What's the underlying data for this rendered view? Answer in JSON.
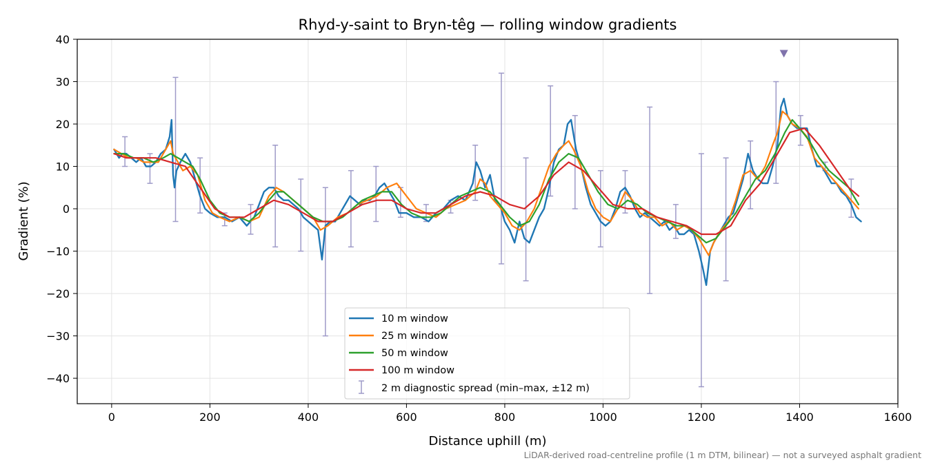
{
  "chart_data": {
    "type": "line",
    "title": "Rhyd-y-saint to Bryn-têg — rolling window gradients",
    "xlabel": "Distance uphill (m)",
    "ylabel": "Gradient (%)",
    "xlim": [
      -70,
      1600
    ],
    "ylim": [
      -46,
      40
    ],
    "xticks": [
      0,
      200,
      400,
      600,
      800,
      1000,
      1200,
      1400,
      1600
    ],
    "yticks": [
      -40,
      -30,
      -20,
      -10,
      0,
      10,
      20,
      30,
      40
    ],
    "xtick_labels": [
      "0",
      "200",
      "400",
      "600",
      "800",
      "1000",
      "1200",
      "1400",
      "1600"
    ],
    "ytick_labels": [
      "−40",
      "−30",
      "−20",
      "−10",
      "0",
      "10",
      "20",
      "30",
      "40"
    ],
    "grid": true,
    "legend_position": "lower center",
    "footnote": "LiDAR-derived road-centreline profile (1 m DTM, bilinear) — not a surveyed asphalt gradient",
    "colors": {
      "w10": "#1f77b4",
      "w25": "#ff7f0e",
      "w50": "#2ca02c",
      "w100": "#d62728",
      "diagnostic": "#9e9ac8",
      "marker": "#8073ac"
    },
    "series": [
      {
        "name": "10 m window",
        "x": [
          5,
          15,
          22,
          30,
          40,
          50,
          60,
          70,
          80,
          90,
          100,
          110,
          118,
          122,
          125,
          128,
          132,
          140,
          150,
          160,
          170,
          180,
          190,
          200,
          215,
          230,
          245,
          260,
          275,
          290,
          300,
          310,
          320,
          330,
          340,
          350,
          360,
          370,
          380,
          390,
          400,
          410,
          420,
          428,
          435,
          445,
          455,
          465,
          475,
          485,
          495,
          505,
          515,
          525,
          535,
          545,
          555,
          565,
          575,
          585,
          600,
          615,
          630,
          645,
          660,
          675,
          690,
          705,
          720,
          735,
          742,
          750,
          760,
          770,
          780,
          790,
          800,
          810,
          820,
          830,
          840,
          850,
          860,
          870,
          880,
          890,
          900,
          910,
          920,
          928,
          935,
          945,
          955,
          965,
          975,
          985,
          995,
          1005,
          1015,
          1025,
          1035,
          1045,
          1055,
          1065,
          1075,
          1085,
          1095,
          1105,
          1115,
          1125,
          1135,
          1145,
          1155,
          1165,
          1175,
          1185,
          1195,
          1203,
          1210,
          1218,
          1225,
          1235,
          1245,
          1255,
          1265,
          1275,
          1285,
          1295,
          1305,
          1315,
          1325,
          1335,
          1345,
          1355,
          1362,
          1368,
          1375,
          1385,
          1395,
          1405,
          1415,
          1425,
          1435,
          1445,
          1455,
          1465,
          1475,
          1485,
          1495,
          1505,
          1515,
          1525
        ],
        "values": [
          14,
          12,
          13,
          13,
          12,
          11,
          12,
          10,
          10,
          11,
          13,
          14,
          17,
          21,
          8,
          5,
          9,
          11,
          13,
          11,
          7,
          3,
          0,
          -1,
          -2,
          -2,
          -3,
          -2,
          -4,
          -2,
          1,
          4,
          5,
          5,
          3,
          2,
          2,
          1,
          0,
          -2,
          -3,
          -4,
          -5,
          -12,
          -4,
          -3,
          -3,
          -1,
          1,
          3,
          2,
          1,
          2,
          2,
          3,
          5,
          6,
          4,
          2,
          -1,
          -1,
          -2,
          -2,
          -3,
          -1,
          0,
          2,
          3,
          2,
          6,
          11,
          9,
          5,
          8,
          2,
          1,
          -3,
          -5,
          -8,
          -3,
          -7,
          -8,
          -5,
          -2,
          0,
          5,
          11,
          14,
          15,
          20,
          21,
          14,
          10,
          5,
          1,
          -1,
          -3,
          -4,
          -3,
          0,
          4,
          5,
          3,
          0,
          -2,
          -1,
          -2,
          -3,
          -4,
          -3,
          -5,
          -4,
          -6,
          -6,
          -5,
          -6,
          -10,
          -14,
          -18,
          -10,
          -8,
          -6,
          -4,
          -2,
          -1,
          3,
          7,
          13,
          9,
          7,
          6,
          6,
          10,
          15,
          24,
          26,
          22,
          20,
          19,
          19,
          19,
          14,
          10,
          10,
          8,
          6,
          6,
          4,
          3,
          1,
          -2,
          -3
        ]
      },
      {
        "name": "25 m window",
        "x": [
          5,
          20,
          35,
          50,
          65,
          80,
          95,
          105,
          115,
          120,
          125,
          135,
          145,
          160,
          175,
          190,
          205,
          220,
          240,
          260,
          280,
          300,
          320,
          335,
          350,
          370,
          390,
          410,
          425,
          440,
          460,
          480,
          500,
          520,
          540,
          560,
          580,
          600,
          620,
          640,
          660,
          680,
          700,
          720,
          740,
          750,
          760,
          770,
          785,
          800,
          815,
          830,
          845,
          860,
          875,
          890,
          905,
          920,
          930,
          940,
          955,
          970,
          985,
          1000,
          1015,
          1030,
          1045,
          1060,
          1075,
          1090,
          1105,
          1120,
          1135,
          1150,
          1165,
          1180,
          1195,
          1205,
          1215,
          1225,
          1240,
          1255,
          1270,
          1285,
          1300,
          1315,
          1330,
          1345,
          1355,
          1365,
          1375,
          1385,
          1400,
          1415,
          1430,
          1445,
          1460,
          1475,
          1490,
          1505,
          1520
        ],
        "values": [
          14,
          13,
          12,
          12,
          11,
          11,
          11,
          13,
          15,
          16,
          13,
          11,
          9,
          10,
          8,
          2,
          -1,
          -2,
          -3,
          -2,
          -3,
          -2,
          3,
          5,
          4,
          2,
          0,
          -2,
          -5,
          -4,
          -2,
          -1,
          1,
          2,
          3,
          5,
          6,
          3,
          0,
          -1,
          -2,
          0,
          1,
          2,
          4,
          7,
          6,
          3,
          1,
          -1,
          -4,
          -5,
          -3,
          0,
          5,
          10,
          13,
          15,
          16,
          14,
          10,
          4,
          0,
          -2,
          -3,
          0,
          4,
          2,
          -1,
          -2,
          -2,
          -4,
          -3,
          -5,
          -4,
          -5,
          -7,
          -9,
          -11,
          -8,
          -5,
          -3,
          2,
          8,
          9,
          7,
          10,
          15,
          18,
          23,
          22,
          20,
          19,
          17,
          12,
          10,
          8,
          6,
          4,
          2,
          0
        ]
      },
      {
        "name": "50 m window",
        "x": [
          5,
          25,
          45,
          65,
          85,
          105,
          120,
          135,
          150,
          165,
          180,
          200,
          220,
          240,
          260,
          280,
          300,
          320,
          335,
          350,
          370,
          390,
          410,
          430,
          450,
          470,
          490,
          510,
          530,
          550,
          570,
          590,
          610,
          630,
          650,
          670,
          690,
          710,
          730,
          750,
          770,
          790,
          810,
          830,
          850,
          870,
          890,
          910,
          930,
          950,
          970,
          990,
          1010,
          1030,
          1050,
          1070,
          1090,
          1110,
          1130,
          1150,
          1170,
          1190,
          1210,
          1230,
          1250,
          1270,
          1290,
          1310,
          1330,
          1350,
          1370,
          1385,
          1400,
          1420,
          1440,
          1460,
          1480,
          1500,
          1520
        ],
        "values": [
          13,
          13,
          12,
          12,
          11,
          12,
          13,
          12,
          11,
          10,
          7,
          2,
          -1,
          -2,
          -2,
          -3,
          -1,
          2,
          4,
          4,
          2,
          0,
          -2,
          -3,
          -3,
          -2,
          0,
          2,
          3,
          4,
          4,
          1,
          -1,
          -2,
          -2,
          -1,
          1,
          3,
          4,
          5,
          4,
          1,
          -2,
          -4,
          -3,
          1,
          7,
          11,
          13,
          12,
          8,
          4,
          1,
          0,
          2,
          1,
          -1,
          -2,
          -3,
          -4,
          -4,
          -6,
          -8,
          -7,
          -4,
          -1,
          3,
          7,
          9,
          13,
          18,
          21,
          19,
          16,
          12,
          9,
          7,
          5,
          1
        ]
      },
      {
        "name": "100 m window",
        "x": [
          5,
          30,
          60,
          90,
          120,
          150,
          180,
          210,
          240,
          270,
          300,
          330,
          360,
          390,
          420,
          450,
          480,
          510,
          540,
          570,
          600,
          630,
          660,
          690,
          720,
          750,
          780,
          810,
          840,
          870,
          900,
          930,
          960,
          990,
          1020,
          1050,
          1080,
          1110,
          1140,
          1170,
          1200,
          1230,
          1260,
          1290,
          1320,
          1350,
          1380,
          1410,
          1440,
          1470,
          1500,
          1520
        ],
        "values": [
          13,
          12,
          12,
          12,
          11,
          10,
          5,
          0,
          -2,
          -2,
          0,
          2,
          1,
          -1,
          -3,
          -3,
          -1,
          1,
          2,
          2,
          0,
          -1,
          -1,
          1,
          3,
          4,
          3,
          1,
          0,
          3,
          8,
          11,
          9,
          5,
          1,
          0,
          0,
          -2,
          -3,
          -4,
          -6,
          -6,
          -4,
          2,
          6,
          12,
          18,
          19,
          15,
          10,
          5,
          3
        ]
      }
    ],
    "error_bars": {
      "name": "2 m diagnostic spread (min–max, ±12 m)",
      "x": [
        27,
        78,
        130,
        180,
        230,
        283,
        333,
        385,
        435,
        487,
        538,
        588,
        640,
        690,
        740,
        793,
        843,
        893,
        943,
        995,
        1045,
        1095,
        1148,
        1200,
        1250,
        1300,
        1352,
        1402,
        1452,
        1505
      ],
      "low": [
        10,
        6,
        -3,
        -1,
        -4,
        -6,
        -9,
        -10,
        -30,
        -9,
        -3,
        -2,
        -3,
        -1,
        2,
        -13,
        -17,
        3,
        0,
        -9,
        -1,
        -20,
        -7,
        -42,
        -17,
        0,
        6,
        15,
        9,
        -2
      ],
      "high": [
        17,
        13,
        31,
        12,
        -1,
        1,
        15,
        7,
        5,
        9,
        10,
        5,
        1,
        2,
        15,
        32,
        12,
        29,
        22,
        9,
        9,
        24,
        1,
        13,
        12,
        16,
        30,
        22,
        11,
        7
      ]
    },
    "peak_marker": {
      "x": 1368,
      "y": 36.5
    }
  }
}
